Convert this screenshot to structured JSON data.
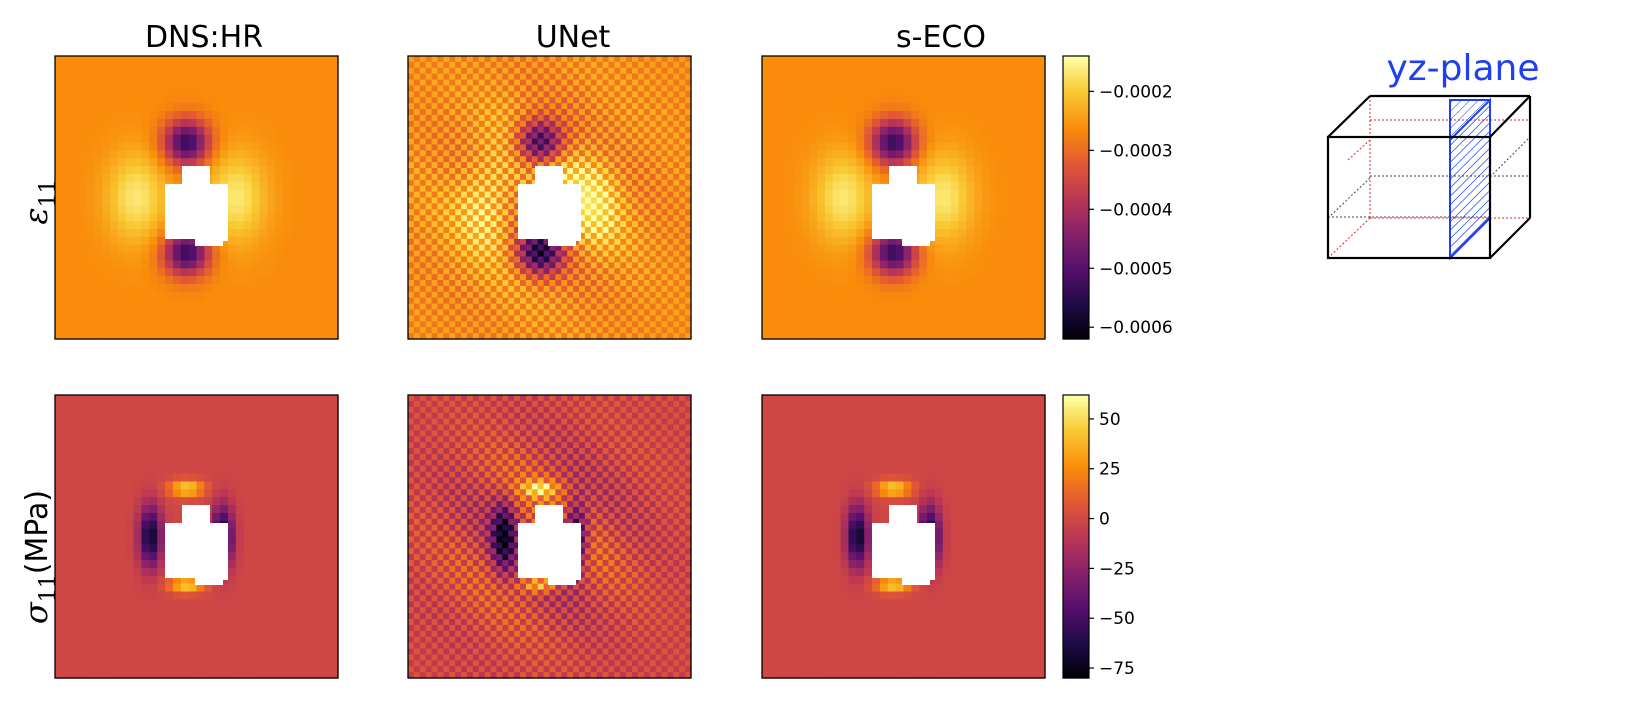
{
  "chart_data": {
    "type": "heatmap",
    "colormap": "inferno",
    "columns": [
      {
        "title": "DNS:HR",
        "style": "smooth"
      },
      {
        "title": "UNet",
        "style": "checkerboard"
      },
      {
        "title": "s-ECO",
        "style": "smooth"
      }
    ],
    "rows": [
      {
        "name": "strain",
        "label_symbol": "ε",
        "label_sub": "11",
        "label_unit": "",
        "colorbar": {
          "range": [
            -0.00062,
            -0.00014
          ],
          "ticks": [
            -0.0002,
            -0.0003,
            -0.0004,
            -0.0005,
            -0.0006
          ],
          "tick_labels": [
            "−0.0002",
            "−0.0003",
            "−0.0004",
            "−0.0005",
            "−0.0006"
          ]
        },
        "background_value": -0.00026,
        "lobe_value": -0.00016,
        "concentration_value": -0.0006
      },
      {
        "name": "stress",
        "label_symbol": "σ",
        "label_sub": "11",
        "label_unit": "(MPa)",
        "colorbar": {
          "range": [
            -80,
            62
          ],
          "ticks": [
            50,
            25,
            0,
            -25,
            -50,
            -75
          ],
          "tick_labels": [
            "50",
            "25",
            "0",
            "−25",
            "−50",
            "−75"
          ]
        },
        "background_value": 0,
        "lobe_value": 55,
        "concentration_value": -78
      }
    ]
  },
  "inset": {
    "title": "yz-plane",
    "title_color": "#1f3ff0",
    "plane_color": "#1f3ff0",
    "cube_color": "#000000",
    "hidden_edge_color": "#d62728"
  }
}
